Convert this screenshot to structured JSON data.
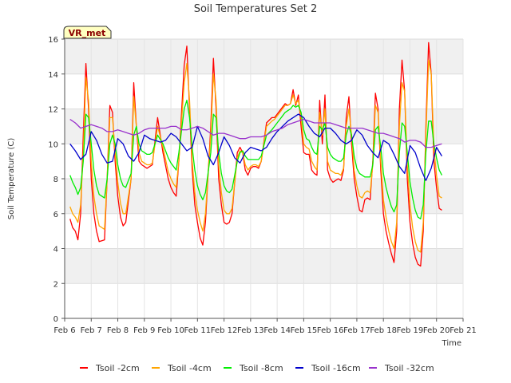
{
  "chart_data": {
    "type": "line",
    "title": "Soil Temperatures Set 2",
    "xlabel": "Time",
    "ylabel": "Soil Temperature (C)",
    "xlim": [
      6,
      21
    ],
    "ylim": [
      0,
      16
    ],
    "yticks": [
      0,
      2,
      4,
      6,
      8,
      10,
      12,
      14,
      16
    ],
    "xticks": [
      {
        "v": 6,
        "label": "Feb 6"
      },
      {
        "v": 7,
        "label": "Feb 7"
      },
      {
        "v": 8,
        "label": "Feb 8"
      },
      {
        "v": 9,
        "label": "Feb 9"
      },
      {
        "v": 10,
        "label": "Feb 10"
      },
      {
        "v": 11,
        "label": "Feb 11"
      },
      {
        "v": 12,
        "label": "Feb 12"
      },
      {
        "v": 13,
        "label": "Feb 13"
      },
      {
        "v": 14,
        "label": "Feb 14"
      },
      {
        "v": 15,
        "label": "Feb 15"
      },
      {
        "v": 16,
        "label": "Feb 16"
      },
      {
        "v": 17,
        "label": "Feb 17"
      },
      {
        "v": 18,
        "label": "Feb 18"
      },
      {
        "v": 19,
        "label": "Feb 19"
      },
      {
        "v": 20,
        "label": "Feb 20"
      },
      {
        "v": 21,
        "label": "Feb 21"
      }
    ],
    "grid": true,
    "legend_position": "bottom",
    "badge": "VR_met",
    "series": [
      {
        "name": "Tsoil -2cm",
        "color": "#ff0000",
        "x": [
          6.2,
          6.3,
          6.4,
          6.5,
          6.6,
          6.7,
          6.8,
          6.9,
          7.0,
          7.1,
          7.2,
          7.3,
          7.5,
          7.6,
          7.7,
          7.8,
          7.9,
          8.0,
          8.1,
          8.2,
          8.3,
          8.5,
          8.6,
          8.7,
          8.8,
          8.9,
          9.0,
          9.1,
          9.2,
          9.3,
          9.5,
          9.7,
          9.9,
          10.0,
          10.1,
          10.2,
          10.3,
          10.5,
          10.6,
          10.7,
          10.8,
          10.9,
          11.0,
          11.1,
          11.2,
          11.3,
          11.5,
          11.6,
          11.7,
          11.8,
          11.9,
          12.0,
          12.1,
          12.2,
          12.3,
          12.5,
          12.6,
          12.7,
          12.8,
          12.9,
          13.0,
          13.1,
          13.2,
          13.3,
          13.4,
          13.6,
          13.8,
          13.9,
          14.0,
          14.1,
          14.2,
          14.3,
          14.4,
          14.5,
          14.6,
          14.7,
          14.8,
          14.9,
          15.0,
          15.1,
          15.2,
          15.3,
          15.4,
          15.5,
          15.6,
          15.7,
          15.8,
          15.9,
          16.0,
          16.1,
          16.2,
          16.3,
          16.4,
          16.5,
          16.6,
          16.7,
          16.8,
          16.9,
          17.0,
          17.1,
          17.2,
          17.3,
          17.4,
          17.5,
          17.6,
          17.7,
          17.8,
          17.9,
          18.0,
          18.1,
          18.2,
          18.3,
          18.4,
          18.5,
          18.6,
          18.7,
          18.8,
          18.9,
          19.0,
          19.1,
          19.2,
          19.3,
          19.4,
          19.5,
          19.6,
          19.7,
          19.8,
          19.9,
          20.0,
          20.1,
          20.2
        ],
        "y": [
          5.7,
          5.2,
          5.0,
          4.5,
          6.0,
          10.5,
          14.6,
          12.0,
          8.0,
          6.0,
          5.0,
          4.4,
          4.5,
          8.0,
          12.2,
          11.8,
          9.0,
          7.0,
          5.8,
          5.3,
          5.5,
          8.0,
          13.5,
          11.0,
          9.0,
          8.8,
          8.7,
          8.6,
          8.7,
          8.8,
          11.5,
          9.5,
          8.0,
          7.5,
          7.2,
          7.0,
          9.0,
          14.5,
          15.6,
          12.0,
          8.5,
          6.5,
          5.5,
          4.6,
          4.2,
          5.5,
          11.0,
          14.9,
          12.0,
          8.0,
          6.5,
          5.5,
          5.4,
          5.5,
          6.0,
          9.5,
          9.8,
          9.5,
          8.5,
          8.2,
          8.6,
          8.7,
          8.7,
          8.6,
          9.0,
          11.2,
          11.5,
          11.5,
          11.7,
          11.9,
          12.1,
          12.3,
          12.2,
          12.3,
          13.1,
          12.2,
          12.8,
          11.0,
          9.5,
          9.4,
          9.4,
          8.5,
          8.3,
          8.2,
          12.5,
          10.0,
          12.8,
          8.5,
          8.0,
          7.8,
          7.9,
          8.0,
          7.9,
          8.5,
          11.5,
          12.7,
          10.0,
          8.0,
          7.0,
          6.2,
          6.1,
          6.8,
          6.9,
          6.8,
          9.0,
          12.9,
          12.0,
          8.5,
          6.0,
          5.0,
          4.3,
          3.7,
          3.2,
          5.0,
          12.0,
          14.8,
          13.0,
          8.0,
          5.5,
          4.3,
          3.5,
          3.1,
          3.0,
          5.0,
          11.0,
          15.8,
          14.0,
          9.0,
          7.5,
          6.3,
          6.2
        ]
      },
      {
        "name": "Tsoil -4cm",
        "color": "#ffa500",
        "x": [
          6.2,
          6.3,
          6.4,
          6.5,
          6.6,
          6.7,
          6.8,
          6.9,
          7.0,
          7.1,
          7.2,
          7.3,
          7.5,
          7.6,
          7.7,
          7.8,
          7.9,
          8.0,
          8.1,
          8.2,
          8.3,
          8.5,
          8.6,
          8.7,
          8.8,
          8.9,
          9.0,
          9.1,
          9.2,
          9.3,
          9.5,
          9.7,
          9.9,
          10.0,
          10.1,
          10.2,
          10.3,
          10.5,
          10.6,
          10.7,
          10.8,
          10.9,
          11.0,
          11.1,
          11.2,
          11.3,
          11.5,
          11.6,
          11.7,
          11.8,
          11.9,
          12.0,
          12.1,
          12.2,
          12.3,
          12.5,
          12.6,
          12.7,
          12.8,
          12.9,
          13.0,
          13.1,
          13.2,
          13.3,
          13.4,
          13.6,
          13.8,
          13.9,
          14.0,
          14.1,
          14.2,
          14.3,
          14.4,
          14.5,
          14.6,
          14.7,
          14.8,
          14.9,
          15.0,
          15.1,
          15.2,
          15.3,
          15.4,
          15.5,
          15.6,
          15.7,
          15.8,
          15.9,
          16.0,
          16.1,
          16.2,
          16.3,
          16.4,
          16.5,
          16.6,
          16.7,
          16.8,
          16.9,
          17.0,
          17.1,
          17.2,
          17.3,
          17.4,
          17.5,
          17.6,
          17.7,
          17.8,
          17.9,
          18.0,
          18.1,
          18.2,
          18.3,
          18.4,
          18.5,
          18.6,
          18.7,
          18.8,
          18.9,
          19.0,
          19.1,
          19.2,
          19.3,
          19.4,
          19.5,
          19.6,
          19.7,
          19.8,
          19.9,
          20.0,
          20.1,
          20.2
        ],
        "y": [
          6.4,
          6.0,
          5.8,
          5.5,
          6.5,
          9.5,
          13.8,
          12.5,
          9.0,
          7.0,
          6.0,
          5.3,
          5.1,
          8.0,
          11.5,
          11.5,
          9.5,
          7.8,
          6.6,
          6.0,
          6.0,
          8.0,
          12.7,
          11.0,
          9.5,
          9.0,
          8.9,
          8.8,
          8.8,
          8.9,
          11.0,
          9.8,
          8.4,
          8.0,
          7.7,
          7.5,
          9.0,
          13.5,
          14.6,
          12.5,
          9.0,
          7.2,
          6.2,
          5.5,
          5.0,
          6.0,
          10.5,
          14.0,
          12.5,
          8.8,
          7.2,
          6.2,
          6.0,
          6.0,
          6.3,
          9.2,
          9.6,
          9.5,
          8.8,
          8.5,
          8.7,
          8.8,
          8.8,
          8.7,
          9.0,
          11.0,
          11.3,
          11.4,
          11.6,
          11.8,
          12.0,
          12.2,
          12.2,
          12.3,
          12.8,
          12.3,
          12.5,
          11.5,
          10.0,
          9.8,
          9.7,
          9.0,
          8.7,
          8.5,
          11.8,
          10.5,
          12.0,
          9.0,
          8.5,
          8.4,
          8.3,
          8.3,
          8.2,
          8.6,
          11.0,
          12.0,
          10.5,
          8.5,
          7.6,
          7.0,
          6.9,
          7.2,
          7.3,
          7.2,
          8.8,
          12.2,
          11.8,
          9.0,
          6.8,
          5.8,
          5.0,
          4.4,
          4.0,
          5.5,
          11.0,
          13.5,
          13.0,
          8.8,
          6.5,
          5.2,
          4.4,
          3.9,
          3.8,
          5.5,
          10.5,
          14.8,
          14.0,
          9.8,
          8.2,
          7.0,
          6.9
        ]
      },
      {
        "name": "Tsoil -8cm",
        "color": "#00ee00",
        "x": [
          6.2,
          6.3,
          6.4,
          6.5,
          6.6,
          6.7,
          6.8,
          6.9,
          7.0,
          7.1,
          7.2,
          7.3,
          7.5,
          7.6,
          7.7,
          7.8,
          7.9,
          8.0,
          8.1,
          8.2,
          8.3,
          8.5,
          8.6,
          8.7,
          8.8,
          8.9,
          9.0,
          9.1,
          9.2,
          9.3,
          9.5,
          9.7,
          9.9,
          10.0,
          10.1,
          10.2,
          10.3,
          10.5,
          10.6,
          10.7,
          10.8,
          10.9,
          11.0,
          11.1,
          11.2,
          11.3,
          11.5,
          11.6,
          11.7,
          11.8,
          11.9,
          12.0,
          12.1,
          12.2,
          12.3,
          12.5,
          12.6,
          12.7,
          12.8,
          12.9,
          13.0,
          13.1,
          13.2,
          13.3,
          13.4,
          13.6,
          13.8,
          13.9,
          14.0,
          14.1,
          14.2,
          14.3,
          14.4,
          14.5,
          14.6,
          14.7,
          14.8,
          14.9,
          15.0,
          15.1,
          15.2,
          15.3,
          15.4,
          15.5,
          15.6,
          15.7,
          15.8,
          15.9,
          16.0,
          16.1,
          16.2,
          16.3,
          16.4,
          16.5,
          16.6,
          16.7,
          16.8,
          16.9,
          17.0,
          17.1,
          17.2,
          17.3,
          17.4,
          17.5,
          17.6,
          17.7,
          17.8,
          17.9,
          18.0,
          18.1,
          18.2,
          18.3,
          18.4,
          18.5,
          18.6,
          18.7,
          18.8,
          18.9,
          19.0,
          19.1,
          19.2,
          19.3,
          19.4,
          19.5,
          19.6,
          19.7,
          19.8,
          19.9,
          20.0,
          20.1,
          20.2
        ],
        "y": [
          8.2,
          7.8,
          7.5,
          7.1,
          7.5,
          9.0,
          11.7,
          11.5,
          10.0,
          8.5,
          7.6,
          7.1,
          6.9,
          8.0,
          10.0,
          10.5,
          10.0,
          8.8,
          8.0,
          7.6,
          7.5,
          8.3,
          10.5,
          11.0,
          10.0,
          9.6,
          9.5,
          9.4,
          9.4,
          9.5,
          10.5,
          10.0,
          9.2,
          8.9,
          8.7,
          8.5,
          9.5,
          12.0,
          12.5,
          11.5,
          9.8,
          8.5,
          7.6,
          7.1,
          6.8,
          7.2,
          9.5,
          11.7,
          11.5,
          9.5,
          8.3,
          7.6,
          7.3,
          7.2,
          7.4,
          9.0,
          9.5,
          9.6,
          9.3,
          9.1,
          9.1,
          9.1,
          9.1,
          9.1,
          9.3,
          10.5,
          10.8,
          11.0,
          11.2,
          11.4,
          11.6,
          11.8,
          11.9,
          12.0,
          12.2,
          12.1,
          12.2,
          11.8,
          10.8,
          10.3,
          10.2,
          9.8,
          9.5,
          9.4,
          11.0,
          10.8,
          11.2,
          9.8,
          9.4,
          9.2,
          9.1,
          9.0,
          9.0,
          9.2,
          10.5,
          11.0,
          10.5,
          9.3,
          8.6,
          8.3,
          8.2,
          8.1,
          8.1,
          8.1,
          8.8,
          10.8,
          11.0,
          9.8,
          8.3,
          7.5,
          6.9,
          6.4,
          6.1,
          6.5,
          9.5,
          11.2,
          11.0,
          9.5,
          7.8,
          6.9,
          6.2,
          5.8,
          5.7,
          6.5,
          9.5,
          11.3,
          11.3,
          10.0,
          9.2,
          8.5,
          8.2
        ]
      },
      {
        "name": "Tsoil -16cm",
        "color": "#0000cc",
        "x": [
          6.2,
          6.4,
          6.6,
          6.8,
          7.0,
          7.2,
          7.4,
          7.6,
          7.8,
          8.0,
          8.2,
          8.4,
          8.6,
          8.8,
          9.0,
          9.2,
          9.4,
          9.6,
          9.8,
          10.0,
          10.2,
          10.4,
          10.6,
          10.8,
          11.0,
          11.2,
          11.4,
          11.6,
          11.8,
          12.0,
          12.2,
          12.4,
          12.6,
          12.8,
          13.0,
          13.2,
          13.4,
          13.6,
          13.8,
          14.0,
          14.2,
          14.4,
          14.6,
          14.8,
          15.0,
          15.2,
          15.4,
          15.6,
          15.8,
          16.0,
          16.2,
          16.4,
          16.6,
          16.8,
          17.0,
          17.2,
          17.4,
          17.6,
          17.8,
          18.0,
          18.2,
          18.4,
          18.6,
          18.8,
          19.0,
          19.2,
          19.4,
          19.6,
          19.8,
          20.0,
          20.2
        ],
        "y": [
          10.0,
          9.6,
          9.1,
          9.4,
          10.7,
          10.2,
          9.4,
          8.9,
          9.0,
          10.3,
          10.0,
          9.3,
          9.0,
          9.5,
          10.5,
          10.3,
          10.2,
          10.1,
          10.2,
          10.6,
          10.4,
          10.0,
          9.6,
          9.8,
          11.0,
          10.3,
          9.3,
          8.8,
          9.5,
          10.4,
          9.9,
          9.2,
          8.9,
          9.5,
          9.8,
          9.7,
          9.6,
          9.8,
          10.3,
          10.7,
          11.0,
          11.3,
          11.5,
          11.7,
          11.5,
          11.0,
          10.6,
          10.4,
          10.9,
          10.9,
          10.6,
          10.2,
          10.0,
          10.2,
          10.8,
          10.5,
          9.9,
          9.5,
          9.2,
          10.2,
          10.0,
          9.4,
          8.7,
          8.3,
          9.9,
          9.5,
          8.6,
          7.9,
          8.6,
          9.8,
          9.3
        ]
      },
      {
        "name": "Tsoil -32cm",
        "color": "#9932cc",
        "x": [
          6.2,
          6.4,
          6.6,
          6.8,
          7.0,
          7.2,
          7.4,
          7.6,
          7.8,
          8.0,
          8.2,
          8.4,
          8.6,
          8.8,
          9.0,
          9.2,
          9.4,
          9.6,
          9.8,
          10.0,
          10.2,
          10.4,
          10.6,
          10.8,
          11.0,
          11.2,
          11.4,
          11.6,
          11.8,
          12.0,
          12.2,
          12.4,
          12.6,
          12.8,
          13.0,
          13.2,
          13.4,
          13.6,
          13.8,
          14.0,
          14.2,
          14.4,
          14.6,
          14.8,
          15.0,
          15.2,
          15.4,
          15.6,
          15.8,
          16.0,
          16.2,
          16.4,
          16.6,
          16.8,
          17.0,
          17.2,
          17.4,
          17.6,
          17.8,
          18.0,
          18.2,
          18.4,
          18.6,
          18.8,
          19.0,
          19.2,
          19.4,
          19.6,
          19.8,
          20.0,
          20.2
        ],
        "y": [
          11.4,
          11.2,
          10.9,
          11.0,
          11.1,
          11.0,
          10.9,
          10.7,
          10.7,
          10.8,
          10.7,
          10.6,
          10.5,
          10.6,
          10.8,
          10.9,
          10.9,
          10.9,
          10.9,
          11.0,
          11.0,
          10.8,
          10.8,
          10.9,
          11.0,
          10.9,
          10.7,
          10.5,
          10.6,
          10.6,
          10.5,
          10.4,
          10.3,
          10.3,
          10.4,
          10.4,
          10.4,
          10.5,
          10.7,
          10.8,
          10.9,
          11.1,
          11.2,
          11.3,
          11.4,
          11.3,
          11.2,
          11.2,
          11.2,
          11.2,
          11.1,
          11.0,
          10.9,
          10.9,
          10.9,
          10.9,
          10.8,
          10.7,
          10.6,
          10.6,
          10.5,
          10.4,
          10.3,
          10.1,
          10.2,
          10.2,
          10.1,
          9.8,
          9.8,
          9.9,
          10.0
        ]
      }
    ]
  }
}
